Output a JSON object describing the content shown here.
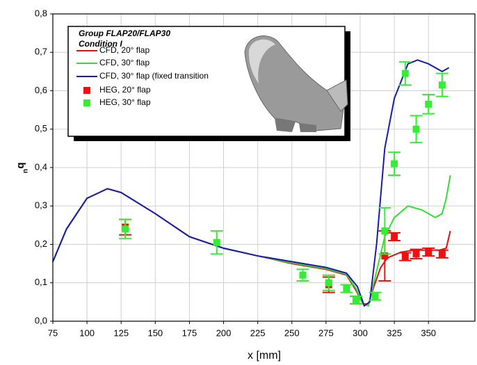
{
  "chart_data": {
    "type": "line",
    "x_label": "x [mm]",
    "y_label": "q",
    "y_label_subscript": "n",
    "legend_title": [
      "Group FLAP20/FLAP30",
      "Condition I"
    ],
    "xlim": [
      75,
      384
    ],
    "ylim": [
      0,
      0.8
    ],
    "xticks": [
      75,
      100,
      125,
      150,
      175,
      200,
      225,
      250,
      275,
      300,
      325,
      350
    ],
    "yticks": [
      {
        "value": 0,
        "label": "0,0"
      },
      {
        "value": 0.1,
        "label": "0,1"
      },
      {
        "value": 0.2,
        "label": "0,2"
      },
      {
        "value": 0.3,
        "label": "0,3"
      },
      {
        "value": 0.4,
        "label": "0,4"
      },
      {
        "value": 0.5,
        "label": "0,5"
      },
      {
        "value": 0.6,
        "label": "0,6"
      },
      {
        "value": 0.7,
        "label": "0,7"
      },
      {
        "value": 0.8,
        "label": "0,8"
      }
    ],
    "grid": true,
    "series": [
      {
        "name": "CFD, 20° flap",
        "color": "#dd1111",
        "kind": "line",
        "x": [
          75,
          85,
          100,
          115,
          125,
          150,
          175,
          200,
          225,
          250,
          275,
          290,
          297,
          302,
          306,
          310,
          315,
          320,
          330,
          340,
          350,
          358,
          363,
          366
        ],
        "values": [
          0.155,
          0.24,
          0.32,
          0.345,
          0.335,
          0.28,
          0.22,
          0.19,
          0.17,
          0.15,
          0.135,
          0.12,
          0.08,
          0.045,
          0.045,
          0.09,
          0.14,
          0.165,
          0.18,
          0.185,
          0.185,
          0.185,
          0.19,
          0.235
        ]
      },
      {
        "name": "CFD, 30° flap",
        "color": "#33dd33",
        "kind": "line",
        "x": [
          75,
          85,
          100,
          115,
          125,
          150,
          175,
          200,
          225,
          250,
          275,
          290,
          297,
          302,
          306,
          310,
          318,
          325,
          335,
          345,
          355,
          360,
          363,
          366
        ],
        "values": [
          0.155,
          0.24,
          0.32,
          0.345,
          0.335,
          0.28,
          0.22,
          0.19,
          0.17,
          0.152,
          0.137,
          0.122,
          0.085,
          0.045,
          0.04,
          0.1,
          0.22,
          0.27,
          0.3,
          0.29,
          0.27,
          0.28,
          0.32,
          0.38
        ]
      },
      {
        "name": "CFD, 30° flap (fixed transition",
        "color": "#1a1aaa",
        "kind": "line",
        "x": [
          75,
          85,
          100,
          115,
          125,
          150,
          175,
          200,
          225,
          250,
          275,
          290,
          298,
          303,
          307,
          312,
          318,
          325,
          335,
          342,
          350,
          360,
          365
        ],
        "values": [
          0.155,
          0.24,
          0.32,
          0.345,
          0.335,
          0.28,
          0.22,
          0.19,
          0.17,
          0.155,
          0.14,
          0.125,
          0.09,
          0.04,
          0.05,
          0.2,
          0.45,
          0.58,
          0.67,
          0.68,
          0.67,
          0.65,
          0.66
        ]
      },
      {
        "name": "HEG, 20° flap",
        "color": "#ee1111",
        "kind": "scatter",
        "x": [
          128,
          277,
          297,
          318,
          325,
          333,
          341,
          350,
          360
        ],
        "values": [
          0.245,
          0.095,
          0.055,
          0.17,
          0.22,
          0.168,
          0.175,
          0.18,
          0.175
        ],
        "errors": [
          0.02,
          0.02,
          0.01,
          0.065,
          0.01,
          0.01,
          0.012,
          0.01,
          0.01
        ]
      },
      {
        "name": "HEG, 30° flap",
        "color": "#33ee33",
        "kind": "scatter",
        "x": [
          128,
          195,
          258,
          277,
          290,
          297,
          311,
          318,
          325,
          333,
          341,
          350,
          360
        ],
        "values": [
          0.24,
          0.205,
          0.12,
          0.1,
          0.085,
          0.055,
          0.065,
          0.235,
          0.41,
          0.645,
          0.5,
          0.565,
          0.615
        ],
        "errors": [
          0.025,
          0.03,
          0.015,
          0.02,
          0.01,
          0.01,
          0.01,
          0.06,
          0.03,
          0.03,
          0.035,
          0.025,
          0.03
        ]
      }
    ]
  }
}
